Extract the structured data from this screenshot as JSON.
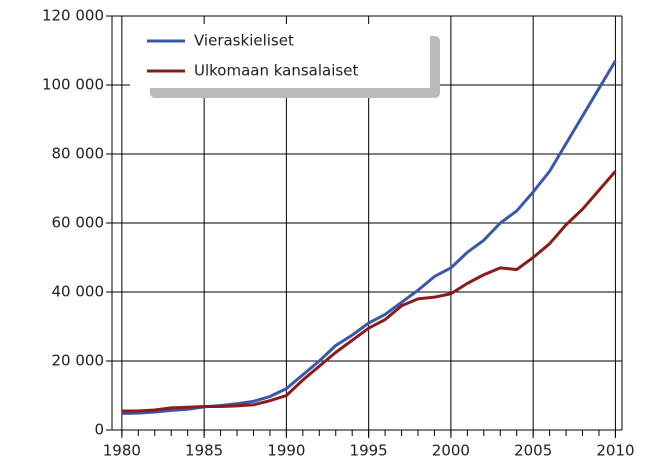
{
  "chart_data": {
    "type": "line",
    "x": [
      1980,
      1981,
      1982,
      1983,
      1984,
      1985,
      1986,
      1987,
      1988,
      1989,
      1990,
      1991,
      1992,
      1993,
      1994,
      1995,
      1996,
      1997,
      1998,
      1999,
      2000,
      2001,
      2002,
      2003,
      2004,
      2005,
      2006,
      2007,
      2008,
      2009,
      2010
    ],
    "series": [
      {
        "name": "Vieraskieliset",
        "color": "#3a58a8",
        "values": [
          4800,
          4900,
          5200,
          5700,
          6000,
          6700,
          7100,
          7600,
          8300,
          9700,
          12000,
          16000,
          20000,
          24500,
          27500,
          31000,
          33500,
          37000,
          40500,
          44500,
          47000,
          51500,
          55000,
          60000,
          63500,
          69000,
          75000,
          83000,
          91000,
          99000,
          107000
        ]
      },
      {
        "name": "Ulkomaan kansalaiset",
        "color": "#8b1c1c",
        "values": [
          5500,
          5500,
          5800,
          6400,
          6600,
          6800,
          6800,
          7000,
          7300,
          8500,
          10000,
          14500,
          18500,
          22500,
          26000,
          29500,
          32000,
          36000,
          38000,
          38500,
          39500,
          42500,
          45000,
          47000,
          46500,
          50000,
          54000,
          59500,
          64000,
          69500,
          75000
        ]
      }
    ],
    "xlim": [
      1979.4,
      2010.4
    ],
    "xticks": [
      1980,
      1985,
      1990,
      1995,
      2000,
      2005,
      2010
    ],
    "ylim": [
      0,
      120000
    ],
    "yticks": [
      0,
      {
        "value": 20000,
        "label": "20 000"
      },
      {
        "value": 40000,
        "label": "40 000"
      },
      {
        "value": 60000,
        "label": "60 000"
      },
      {
        "value": 80000,
        "label": "80 000"
      },
      {
        "value": 100000,
        "label": "100 000"
      },
      {
        "value": 120000,
        "label": "120 000"
      }
    ],
    "grid": true,
    "legend": "top-left"
  }
}
